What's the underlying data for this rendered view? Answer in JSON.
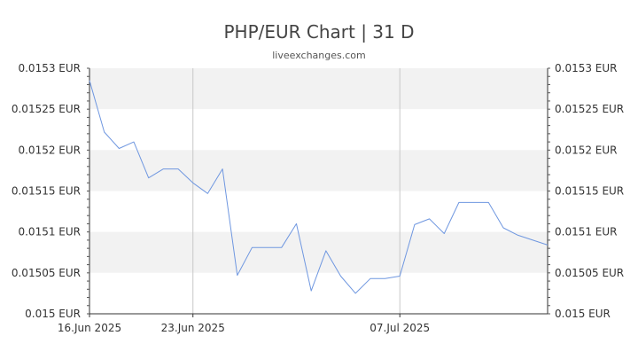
{
  "chart_data": {
    "type": "line",
    "title": "PHP/EUR Chart | 31 D",
    "subtitle": "liveexchanges.com",
    "ylim": [
      0.015,
      0.0153
    ],
    "y_ticks": [
      "0.015 EUR",
      "0.01505 EUR",
      "0.0151 EUR",
      "0.01515 EUR",
      "0.0152 EUR",
      "0.01525 EUR",
      "0.0153 EUR"
    ],
    "x_ticks": [
      {
        "label": "16.Jun 2025",
        "day": 0
      },
      {
        "label": "23.Jun 2025",
        "day": 7
      },
      {
        "label": "07.Jul 2025",
        "day": 21
      }
    ],
    "x_range": [
      0,
      31
    ],
    "grid": true,
    "series": [
      {
        "color": "#6f97e0",
        "points": [
          [
            0,
            0.015285
          ],
          [
            1,
            0.015222
          ],
          [
            2,
            0.015202
          ],
          [
            3,
            0.01521
          ],
          [
            4,
            0.015166
          ],
          [
            5,
            0.015177
          ],
          [
            6,
            0.015177
          ],
          [
            7,
            0.01516
          ],
          [
            8,
            0.015147
          ],
          [
            9,
            0.015177
          ],
          [
            10,
            0.015047
          ],
          [
            11,
            0.015081
          ],
          [
            12,
            0.015081
          ],
          [
            13,
            0.015081
          ],
          [
            14,
            0.01511
          ],
          [
            15,
            0.015028
          ],
          [
            16,
            0.015077
          ],
          [
            17,
            0.015046
          ],
          [
            18,
            0.015025
          ],
          [
            19,
            0.015043
          ],
          [
            20,
            0.015043
          ],
          [
            21,
            0.015046
          ],
          [
            22,
            0.015109
          ],
          [
            23,
            0.015116
          ],
          [
            24,
            0.015098
          ],
          [
            25,
            0.015136
          ],
          [
            26,
            0.015136
          ],
          [
            27,
            0.015136
          ],
          [
            28,
            0.015105
          ],
          [
            29,
            0.015096
          ],
          [
            30,
            0.01509
          ],
          [
            31,
            0.015084
          ]
        ]
      }
    ]
  }
}
